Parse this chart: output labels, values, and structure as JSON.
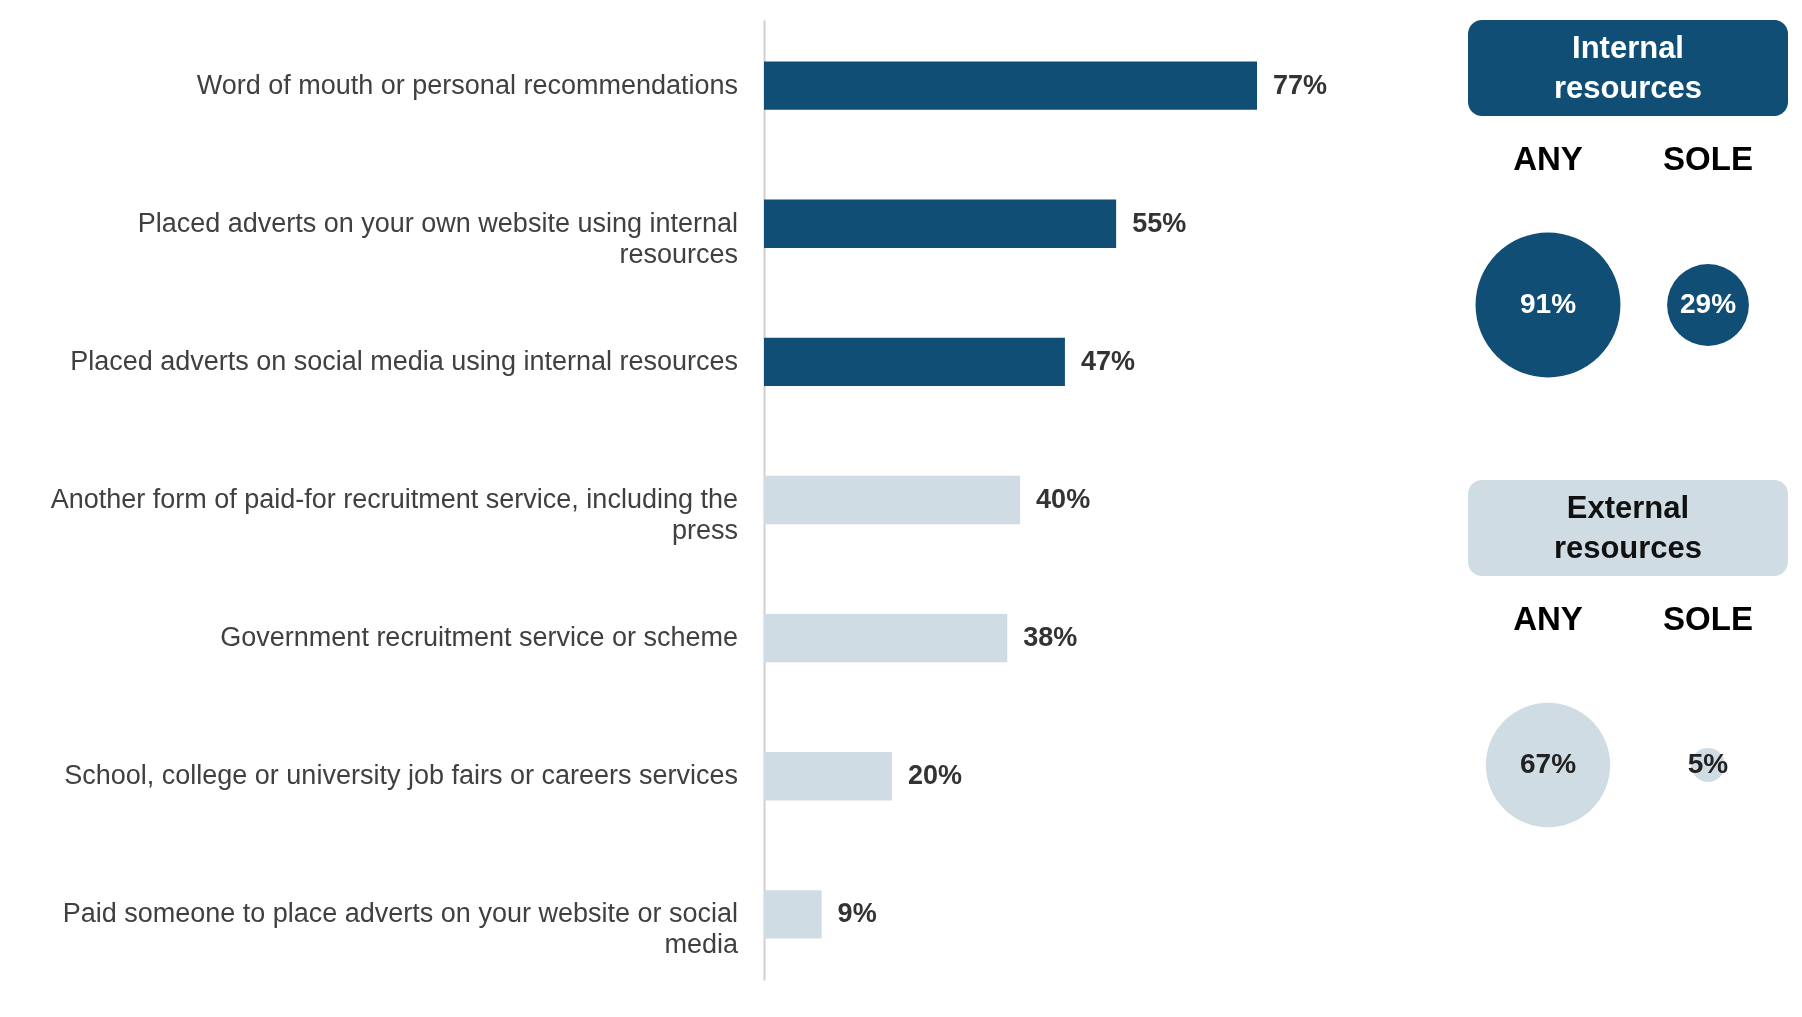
{
  "chart_data": [
    {
      "type": "bar",
      "orientation": "horizontal",
      "categories": [
        "Word of mouth or personal recommendations",
        "Placed adverts on your own website using internal resources",
        "Placed adverts on social media using internal resources",
        "Another form of paid-for recruitment service, including the press",
        "Government recruitment service or scheme",
        "School, college or university job fairs or careers services",
        "Paid someone to place adverts on your website or social media"
      ],
      "values": [
        77,
        55,
        47,
        40,
        38,
        20,
        9
      ],
      "colors": [
        "#114e75",
        "#114e75",
        "#114e75",
        "#d0dce4",
        "#d0dce4",
        "#d0dce4",
        "#d0dce4"
      ],
      "value_labels": [
        "77%",
        "55%",
        "47%",
        "40%",
        "38%",
        "20%",
        "9%"
      ]
    },
    {
      "type": "other",
      "categories": [
        "ANY",
        "SOLE"
      ],
      "series": [
        {
          "name": "Internal resources",
          "color": "#114e75",
          "values": [
            91,
            29
          ],
          "value_labels": [
            "91%",
            "29%"
          ]
        },
        {
          "name": "External resources",
          "color": "#d0dce4",
          "values": [
            67,
            5
          ],
          "value_labels": [
            "67%",
            "5%"
          ]
        }
      ]
    }
  ]
}
